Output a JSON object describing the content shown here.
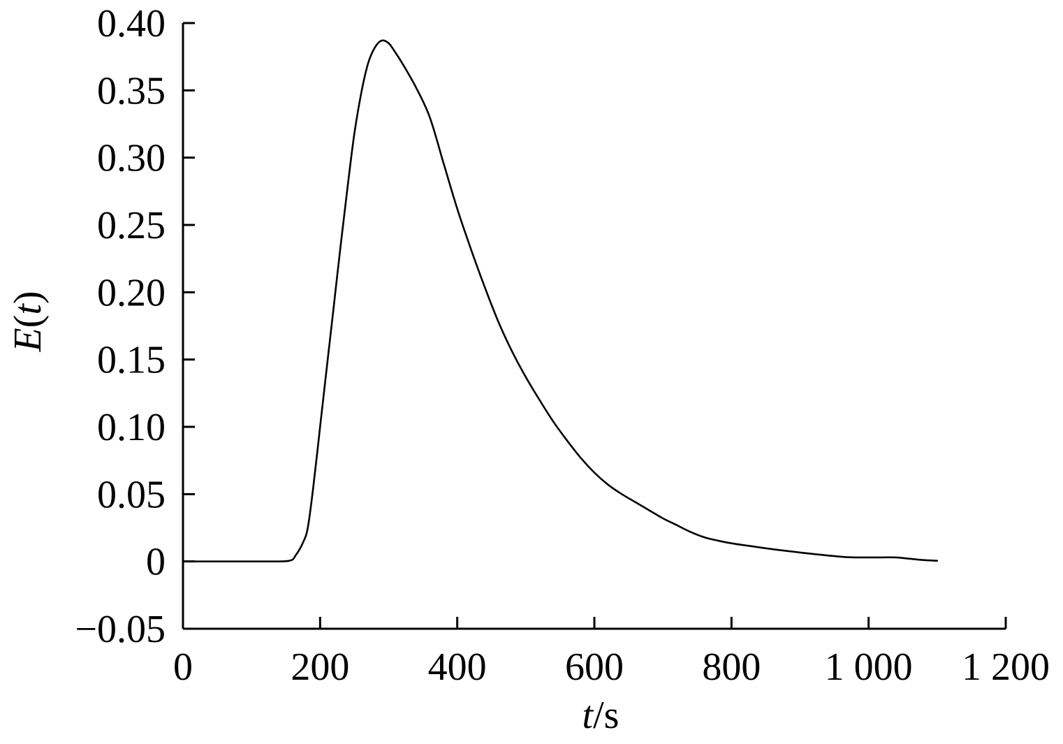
{
  "chart_data": {
    "type": "line",
    "title": "",
    "xlabel": {
      "var": "t",
      "unit": "/s"
    },
    "ylabel": {
      "var": "E",
      "open": "(",
      "arg": "t",
      "close": ")"
    },
    "xlim": [
      0,
      1200
    ],
    "ylim": [
      -0.05,
      0.4
    ],
    "grid": false,
    "legend": "none",
    "x_ticks": [
      {
        "value": 0,
        "label": "0"
      },
      {
        "value": 200,
        "label": "200"
      },
      {
        "value": 400,
        "label": "400"
      },
      {
        "value": 600,
        "label": "600"
      },
      {
        "value": 800,
        "label": "800"
      },
      {
        "value": 1000,
        "label": "1 000"
      },
      {
        "value": 1200,
        "label": "1 200"
      }
    ],
    "y_ticks": [
      {
        "value": -0.05,
        "label": "−0.05"
      },
      {
        "value": 0,
        "label": "0"
      },
      {
        "value": 0.05,
        "label": "0.05"
      },
      {
        "value": 0.1,
        "label": "0.10"
      },
      {
        "value": 0.15,
        "label": "0.15"
      },
      {
        "value": 0.2,
        "label": "0.20"
      },
      {
        "value": 0.25,
        "label": "0.25"
      },
      {
        "value": 0.3,
        "label": "0.30"
      },
      {
        "value": 0.35,
        "label": "0.35"
      },
      {
        "value": 0.4,
        "label": "0.40"
      }
    ],
    "series": [
      {
        "x": [
          0,
          60,
          120,
          155,
          165,
          175,
          182,
          190,
          200,
          210,
          220,
          230,
          240,
          250,
          260,
          270,
          280,
          290,
          300,
          310,
          320,
          340,
          360,
          380,
          400,
          420,
          440,
          460,
          480,
          500,
          520,
          540,
          560,
          580,
          600,
          620,
          640,
          660,
          680,
          700,
          720,
          740,
          760,
          780,
          800,
          840,
          880,
          920,
          960,
          980,
          1000,
          1020,
          1040,
          1060,
          1080,
          1100
        ],
        "y": [
          0,
          0,
          0,
          0.0005,
          0.005,
          0.014,
          0.025,
          0.055,
          0.1,
          0.145,
          0.19,
          0.235,
          0.278,
          0.318,
          0.348,
          0.37,
          0.382,
          0.387,
          0.385,
          0.378,
          0.37,
          0.352,
          0.33,
          0.296,
          0.262,
          0.232,
          0.204,
          0.178,
          0.156,
          0.137,
          0.12,
          0.104,
          0.09,
          0.077,
          0.066,
          0.057,
          0.05,
          0.044,
          0.038,
          0.032,
          0.027,
          0.022,
          0.018,
          0.0155,
          0.0135,
          0.0105,
          0.0078,
          0.0055,
          0.0035,
          0.003,
          0.003,
          0.003,
          0.003,
          0.002,
          0.001,
          0.0005
        ]
      }
    ]
  }
}
